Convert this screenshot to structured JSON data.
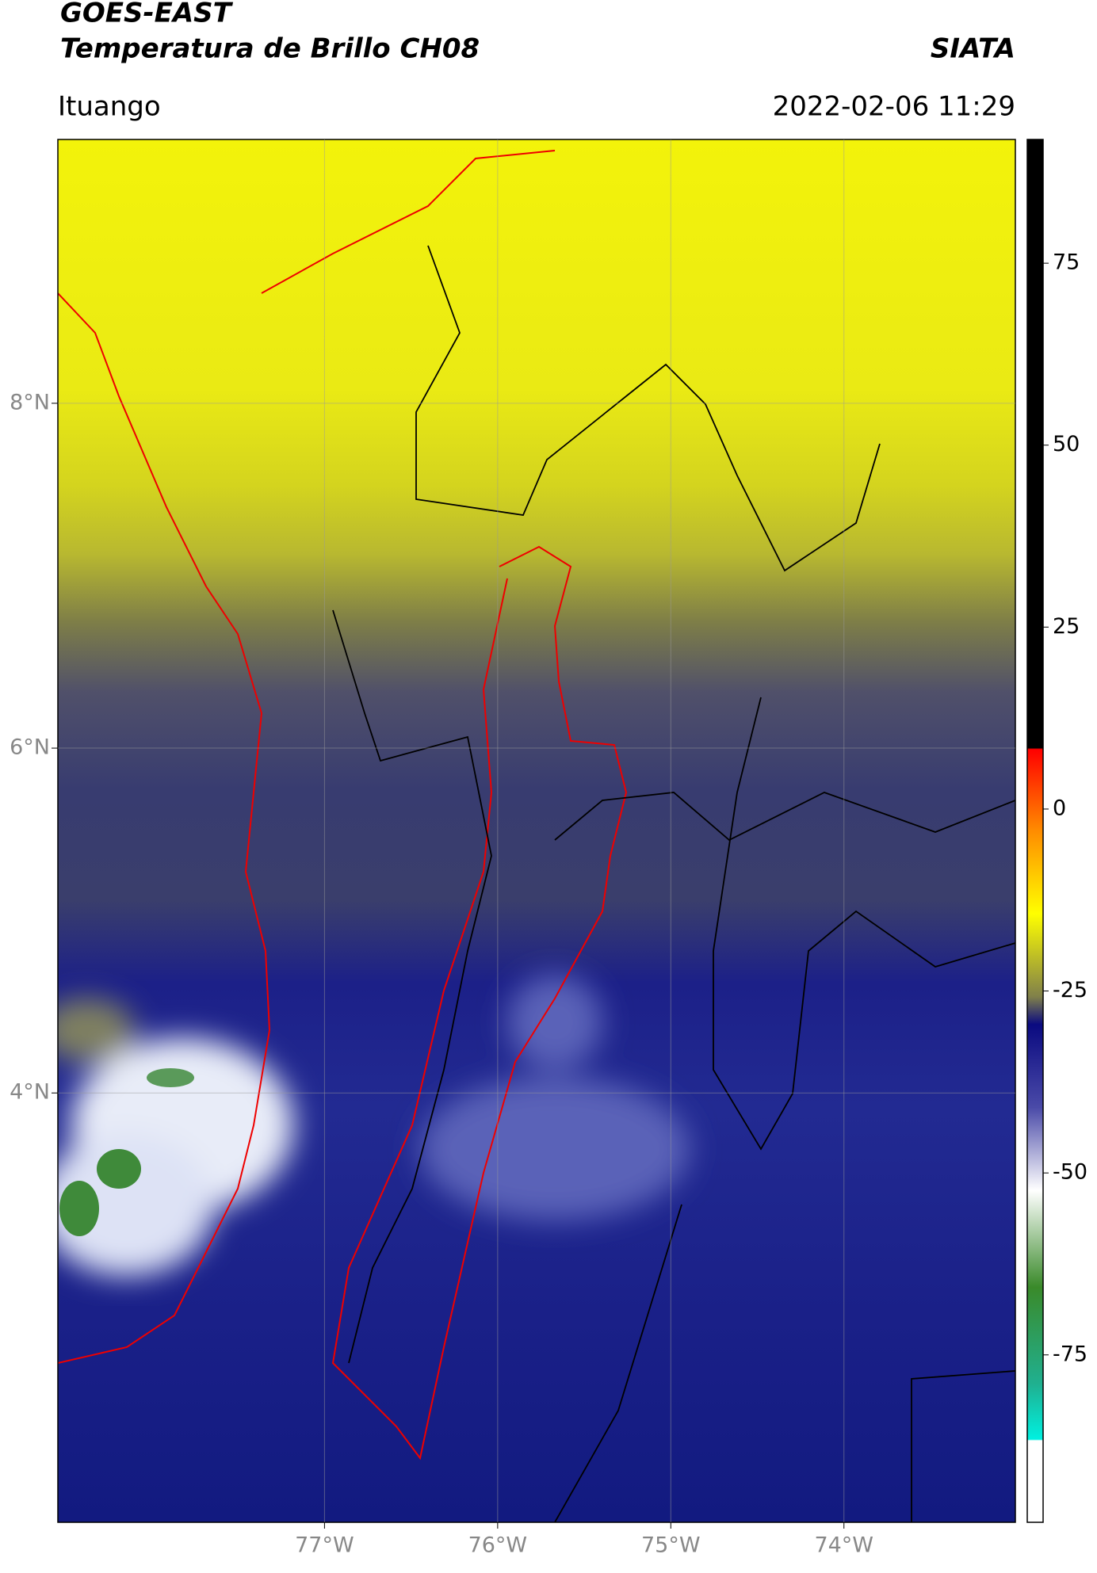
{
  "header": {
    "title": "GOES-EAST",
    "subtitle": "Temperatura de Brillo CH08",
    "source": "SIATA",
    "location": "Ituango",
    "datetime": "2022-02-06 11:29"
  },
  "map": {
    "xlim": [
      -78.54,
      -73.01
    ],
    "ylim": [
      1.51,
      9.53
    ],
    "xticks": [
      {
        "value": -77,
        "label": "77°W"
      },
      {
        "value": -76,
        "label": "76°W"
      },
      {
        "value": -75,
        "label": "75°W"
      },
      {
        "value": -74,
        "label": "74°W"
      }
    ],
    "yticks": [
      {
        "value": 4,
        "label": "4°N"
      },
      {
        "value": 6,
        "label": "6°N"
      },
      {
        "value": 8,
        "label": "8°N"
      }
    ],
    "grid": true
  },
  "colorbar": {
    "lim": [
      -98,
      92
    ],
    "ticks": [
      -75,
      -50,
      -25,
      0,
      25,
      50,
      75
    ]
  }
}
